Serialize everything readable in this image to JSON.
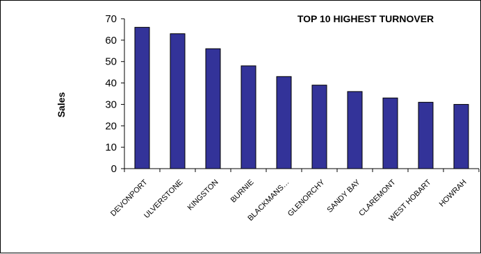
{
  "chart_data": {
    "type": "bar",
    "title": "TOP 10 HIGHEST TURNOVER",
    "xlabel": "",
    "ylabel": "Sales",
    "categories": [
      "DEVONPORT",
      "ULVERSTONE",
      "KINGSTON",
      "BURNIE",
      "BLACKMANS…",
      "GLENORCHY",
      "SANDY BAY",
      "CLAREMONT",
      "WEST HOBART",
      "HOWRAH"
    ],
    "values": [
      66,
      63,
      56,
      48,
      43,
      39,
      36,
      33,
      31,
      30
    ],
    "ylim": [
      0,
      70
    ],
    "yticks": [
      0,
      10,
      20,
      30,
      40,
      50,
      60,
      70
    ],
    "grid": false,
    "legend": "none",
    "bar_color": "#333399",
    "bar_edge_color": "#000000"
  }
}
